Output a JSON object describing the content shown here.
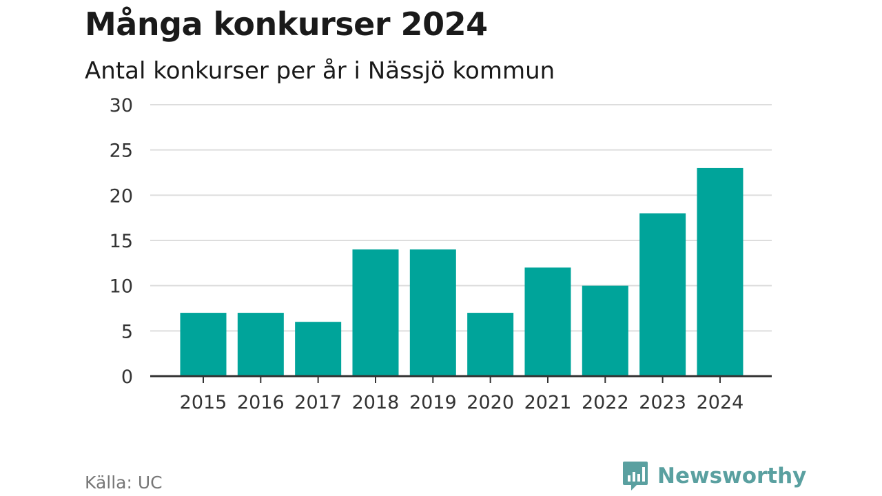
{
  "header": {
    "title": "Många konkurser 2024",
    "subtitle": "Antal konkurser per år i Nässjö kommun"
  },
  "footer": {
    "source": "Källa: UC",
    "brand": "Newsworthy",
    "brand_icon": "bar-chart-speech-bubble-icon"
  },
  "colors": {
    "bar": "#00a49a",
    "grid": "#dddddd",
    "axis": "#333333",
    "brand": "#5aa0a0"
  },
  "chart_data": {
    "type": "bar",
    "categories": [
      "2015",
      "2016",
      "2017",
      "2018",
      "2019",
      "2020",
      "2021",
      "2022",
      "2023",
      "2024"
    ],
    "values": [
      7,
      7,
      6,
      14,
      14,
      7,
      12,
      10,
      18,
      23
    ],
    "yticks": [
      0,
      5,
      10,
      15,
      20,
      25,
      30
    ],
    "ylim": [
      0,
      30
    ],
    "grid": true,
    "legend": false
  }
}
